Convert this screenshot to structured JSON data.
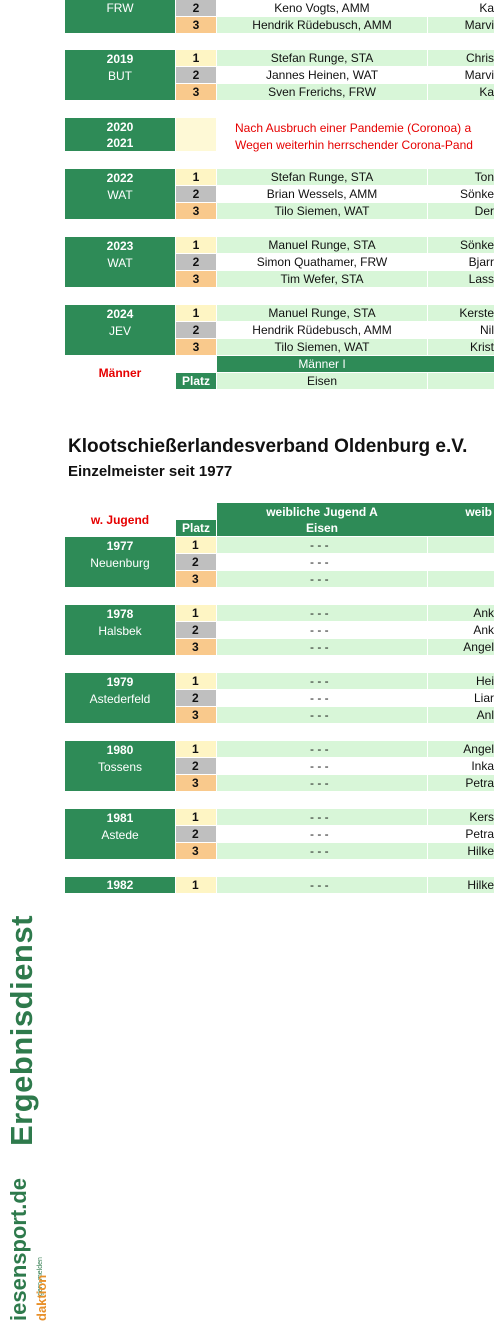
{
  "top_section": {
    "blocks": [
      {
        "year": "",
        "place": "FRW",
        "rows": [
          {
            "platz": "2",
            "m1": "Keno Vogts, AMM",
            "m2": "Ka"
          },
          {
            "platz": "3",
            "m1": "Hendrik Rüdebusch, AMM",
            "m2": "Marvi"
          }
        ]
      },
      {
        "year": "2019",
        "place": "BUT",
        "rows": [
          {
            "platz": "1",
            "m1": "Stefan Runge, STA",
            "m2": "Chris"
          },
          {
            "platz": "2",
            "m1": "Jannes Heinen, WAT",
            "m2": "Marvi"
          },
          {
            "platz": "3",
            "m1": "Sven Frerichs, FRW",
            "m2": "Ka"
          }
        ]
      },
      {
        "year": "2022",
        "place": "WAT",
        "rows": [
          {
            "platz": "1",
            "m1": "Stefan Runge, STA",
            "m2": "Ton"
          },
          {
            "platz": "2",
            "m1": "Brian Wessels, AMM",
            "m2": "Sönke"
          },
          {
            "platz": "3",
            "m1": "Tilo Siemen, WAT",
            "m2": "Der"
          }
        ]
      },
      {
        "year": "2023",
        "place": "WAT",
        "rows": [
          {
            "platz": "1",
            "m1": "Manuel Runge, STA",
            "m2": "Sönke"
          },
          {
            "platz": "2",
            "m1": "Simon Quathamer, FRW",
            "m2": "Bjarr"
          },
          {
            "platz": "3",
            "m1": "Tim Wefer, STA",
            "m2": "Lass"
          }
        ]
      },
      {
        "year": "2024",
        "place": "JEV",
        "rows": [
          {
            "platz": "1",
            "m1": "Manuel Runge, STA",
            "m2": "Kerste"
          },
          {
            "platz": "2",
            "m1": "Hendrik Rüdebusch, AMM",
            "m2": "Nil"
          },
          {
            "platz": "3",
            "m1": "Tilo Siemen, WAT",
            "m2": "Krist"
          }
        ]
      }
    ],
    "pandemic": {
      "year1": "2020",
      "year2": "2021",
      "line1": "Nach Ausbruch einer Pandemie (Coronoa) a",
      "line2": "Wegen weiterhin herrschender Corona-Pand"
    },
    "footer": {
      "category": "Männer",
      "platz": "Platz",
      "group": "Männer I",
      "sub": "Eisen"
    }
  },
  "heading": {
    "title": "Klootschießerlandesverband Oldenburg e.V.",
    "subtitle": "Einzelmeister seit 1977"
  },
  "bottom_section": {
    "header": {
      "category": "w. Jugend",
      "platz": "Platz",
      "group": "weibliche Jugend A",
      "sub": "Eisen",
      "group2": "weib"
    },
    "blocks": [
      {
        "year": "1977",
        "place": "Neuenburg",
        "rows": [
          {
            "platz": "1",
            "m1": "- - -",
            "m2": ""
          },
          {
            "platz": "2",
            "m1": "- - -",
            "m2": ""
          },
          {
            "platz": "3",
            "m1": "- - -",
            "m2": ""
          }
        ]
      },
      {
        "year": "1978",
        "place": "Halsbek",
        "rows": [
          {
            "platz": "1",
            "m1": "- - -",
            "m2": "Ank"
          },
          {
            "platz": "2",
            "m1": "- - -",
            "m2": "Ank"
          },
          {
            "platz": "3",
            "m1": "- - -",
            "m2": "Angel"
          }
        ]
      },
      {
        "year": "1979",
        "place": "Astederfeld",
        "rows": [
          {
            "platz": "1",
            "m1": "- - -",
            "m2": "Hei"
          },
          {
            "platz": "2",
            "m1": "- - -",
            "m2": "Liar"
          },
          {
            "platz": "3",
            "m1": "- - -",
            "m2": "Anl"
          }
        ]
      },
      {
        "year": "1980",
        "place": "Tossens",
        "rows": [
          {
            "platz": "1",
            "m1": "- - -",
            "m2": "Angel"
          },
          {
            "platz": "2",
            "m1": "- - -",
            "m2": "Inka"
          },
          {
            "platz": "3",
            "m1": "- - -",
            "m2": "Petra"
          }
        ]
      },
      {
        "year": "1981",
        "place": "Astede",
        "rows": [
          {
            "platz": "1",
            "m1": "- - -",
            "m2": "Kers"
          },
          {
            "platz": "2",
            "m1": "- - -",
            "m2": "Petra"
          },
          {
            "platz": "3",
            "m1": "- - -",
            "m2": "Hilke"
          }
        ]
      },
      {
        "year": "1982",
        "place": "",
        "rows": [
          {
            "platz": "1",
            "m1": "- - -",
            "m2": "Hilke"
          }
        ]
      }
    ]
  },
  "sidebar": {
    "brand": "Ergebnisdienst",
    "domain": "iesensport.de",
    "tagline": "gern melden",
    "red_word": "daktion"
  },
  "colors": {
    "green": "#2e8b57",
    "light_green": "#d8f6d8",
    "gold": "#fef5c4",
    "silver": "#bfbfbf",
    "bronze": "#f9c98c",
    "red": "#e60000"
  }
}
